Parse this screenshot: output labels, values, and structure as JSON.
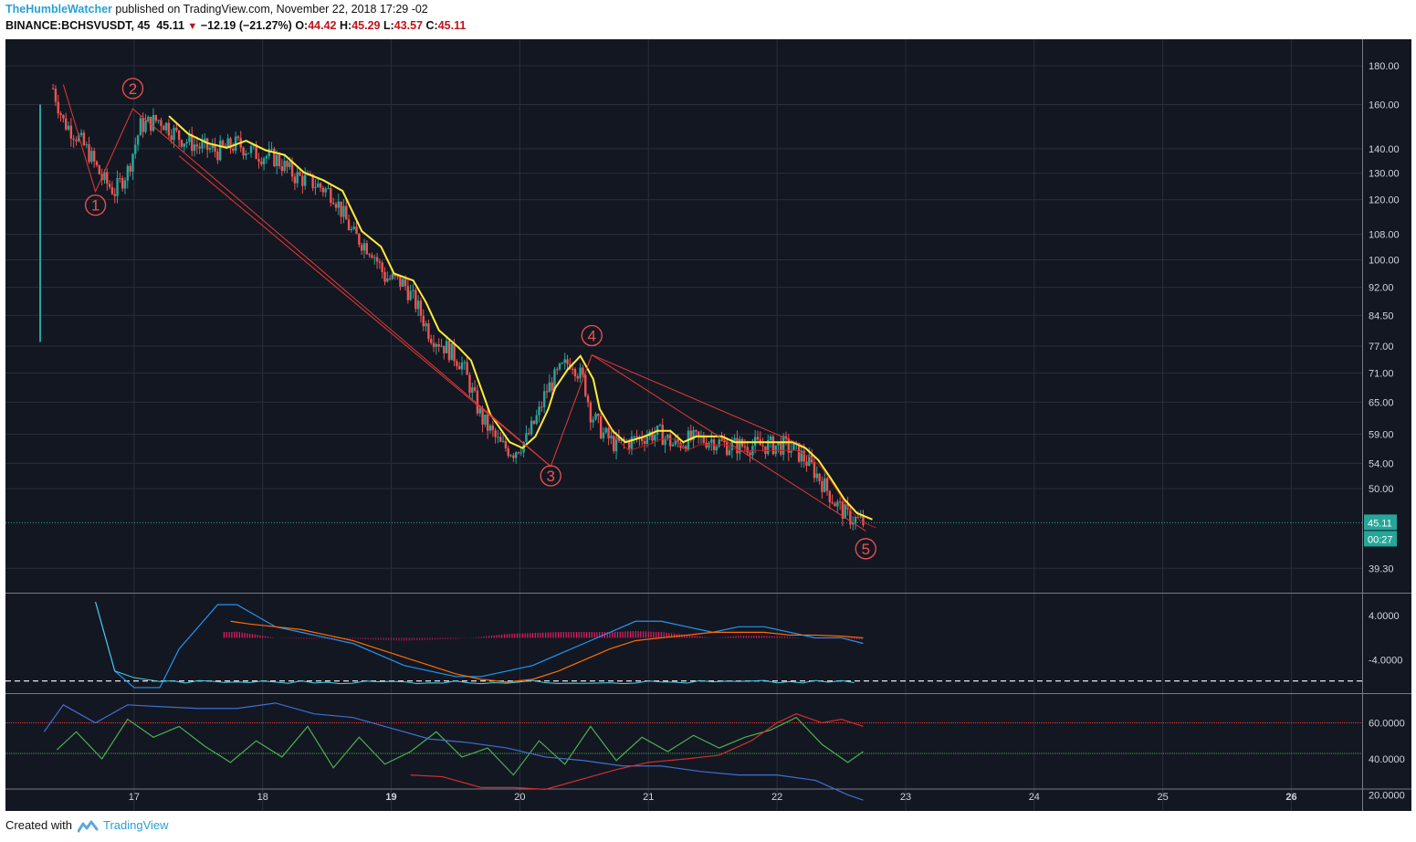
{
  "header": {
    "author": "TheHumbleWatcher",
    "published_text": "published on TradingView.com, November 22, 2018 17:29 -02",
    "symbol": "BINANCE:BCHSVUSDT, 45",
    "last": "45.11",
    "change": "−12.19 (−21.27%)",
    "o_label": "O:",
    "o_value": "44.42",
    "h_label": "H:",
    "h_value": "45.29",
    "l_label": "L:",
    "l_value": "43.57",
    "c_label": "C:",
    "c_value": "45.11"
  },
  "footer": {
    "created_with": "Created with",
    "brand": "TradingView"
  },
  "colors": {
    "background": "#131722",
    "grid": "#2a2e39",
    "up": "#26a69a",
    "down": "#ef5350",
    "ma_yellow": "#ffeb3b",
    "wave_line": "#e53935",
    "accent": "#2a9fd6"
  },
  "chart_data": [
    {
      "type": "line",
      "panel": "price",
      "y_scale": "log",
      "ylim": [
        36.5,
        195
      ],
      "y_ticks": [
        "180.00",
        "160.00",
        "140.00",
        "130.00",
        "120.00",
        "108.00",
        "100.00",
        "92.00",
        "84.50",
        "77.00",
        "71.00",
        "65.00",
        "59.00",
        "54.00",
        "50.00",
        "39.30"
      ],
      "x_ticks": [
        "17",
        "18",
        "19",
        "20",
        "21",
        "22",
        "23",
        "24",
        "25",
        "26"
      ],
      "x_range_days": [
        16.0,
        26.55
      ],
      "last_price_label": "45.11",
      "countdown_label": "00:27",
      "series": [
        {
          "x": [
            16.37,
            16.45,
            16.55,
            16.65,
            16.75,
            16.85,
            16.95,
            17.05,
            17.2,
            17.35,
            17.5,
            17.65,
            17.8,
            17.95,
            18.1,
            18.25,
            18.4,
            18.55,
            18.7,
            18.85,
            18.95,
            19.1,
            19.2,
            19.3,
            19.45,
            19.55,
            19.7,
            19.85,
            19.95,
            20.05,
            20.15,
            20.2,
            20.3,
            20.4,
            20.5,
            20.55,
            20.65,
            20.75,
            20.9,
            21.0,
            21.1,
            21.2,
            21.3,
            21.4,
            21.5,
            21.6,
            21.7,
            21.8,
            21.95,
            22.05,
            22.15,
            22.25,
            22.35,
            22.45,
            22.55,
            22.67
          ],
          "values": [
            168,
            152,
            146,
            138,
            128,
            123,
            131,
            150,
            153,
            145,
            141,
            139,
            142,
            138,
            136,
            129,
            126,
            122,
            108,
            103,
            95,
            93,
            87,
            80,
            76,
            73,
            62,
            57,
            56,
            58,
            63,
            67,
            71,
            74,
            69,
            63,
            59,
            57,
            58,
            59,
            59,
            57,
            58,
            58,
            58,
            57,
            57,
            57,
            57,
            57,
            56,
            54,
            51,
            48,
            46,
            45.11
          ]
        }
      ],
      "annotations": [
        {
          "label": "1",
          "x": 16.7,
          "y": 118
        },
        {
          "label": "2",
          "x": 16.99,
          "y": 168
        },
        {
          "label": "3",
          "x": 20.24,
          "y": 52
        },
        {
          "label": "4",
          "x": 20.56,
          "y": 79.5
        },
        {
          "label": "5",
          "x": 22.69,
          "y": 41.7
        }
      ]
    },
    {
      "type": "line",
      "panel": "macd",
      "y_ticks": [
        "4.0000",
        "-4.0000"
      ],
      "series": [
        {
          "x": [
            16.7,
            16.85,
            17.0,
            17.2,
            17.35,
            17.5,
            17.65,
            17.8,
            17.95,
            18.1,
            18.3,
            18.5,
            18.7,
            18.9,
            19.1,
            19.3,
            19.5,
            19.7,
            19.9,
            20.1,
            20.3,
            20.5,
            20.7,
            20.9,
            21.1,
            21.3,
            21.5,
            21.7,
            21.9,
            22.1,
            22.3,
            22.5,
            22.67
          ],
          "values": [
            6.5,
            -6,
            -9,
            -9,
            -2,
            2,
            6,
            6,
            4,
            2,
            1,
            0,
            -1,
            -3,
            -5,
            -6,
            -7,
            -7,
            -6,
            -5,
            -3,
            -1,
            1,
            3,
            3,
            2,
            1,
            2,
            2,
            1,
            0,
            0,
            -1
          ]
        },
        {
          "x": [
            17.75,
            17.9,
            18.1,
            18.3,
            18.5,
            18.7,
            18.9,
            19.1,
            19.3,
            19.5,
            19.7,
            19.9,
            20.1,
            20.3,
            20.5,
            20.7,
            20.9,
            21.1,
            21.3,
            21.5,
            21.7,
            21.9,
            22.1,
            22.3,
            22.5,
            22.67
          ],
          "values": [
            3,
            2.5,
            2,
            1.5,
            0.5,
            -0.5,
            -2,
            -3.5,
            -5,
            -6.5,
            -7.5,
            -8,
            -7.5,
            -6,
            -4,
            -2,
            -0.5,
            0,
            0.5,
            1,
            1,
            1,
            0.5,
            0.5,
            0.3,
            0
          ]
        }
      ]
    },
    {
      "type": "line",
      "panel": "oscillator",
      "y_ticks": [
        "60.0000",
        "40.0000",
        "20.0000"
      ],
      "reference_lines": [
        60,
        43
      ],
      "series": [
        {
          "x": [
            16.4,
            16.55,
            16.75,
            16.95,
            17.15,
            17.35,
            17.55,
            17.75,
            17.95,
            18.15,
            18.35,
            18.55,
            18.75,
            18.95,
            19.15,
            19.35,
            19.55,
            19.75,
            19.95,
            20.15,
            20.35,
            20.55,
            20.75,
            20.95,
            21.15,
            21.35,
            21.55,
            21.75,
            21.95,
            22.15,
            22.35,
            22.55,
            22.67
          ],
          "values": [
            45,
            55,
            40,
            62,
            52,
            58,
            47,
            38,
            50,
            41,
            58,
            35,
            52,
            37,
            44,
            55,
            41,
            46,
            31,
            50,
            37,
            58,
            39,
            52,
            44,
            53,
            46,
            52,
            56,
            63,
            48,
            38,
            44
          ]
        },
        {
          "x": [
            16.3,
            16.45,
            16.7,
            16.95,
            17.2,
            17.5,
            17.8,
            18.1,
            18.4,
            18.7,
            19.0,
            19.3,
            19.6,
            19.9,
            20.2,
            20.5,
            20.8,
            21.1,
            21.4,
            21.7,
            22.0,
            22.3,
            22.55,
            22.67
          ],
          "values": [
            55,
            70,
            60,
            70,
            69,
            68,
            68,
            71,
            65,
            63,
            57,
            51,
            49,
            46,
            41,
            39,
            36,
            36,
            33,
            31,
            31,
            28,
            20,
            17
          ]
        },
        {
          "x": [
            19.15,
            19.4,
            19.7,
            19.95,
            20.2,
            20.5,
            20.75,
            21.0,
            21.3,
            21.55,
            21.8,
            22.0,
            22.15,
            22.35,
            22.5,
            22.67
          ],
          "values": [
            31,
            30,
            24,
            24,
            23,
            29,
            34,
            38,
            40,
            42,
            50,
            60,
            65,
            60,
            62,
            58
          ]
        }
      ]
    }
  ]
}
